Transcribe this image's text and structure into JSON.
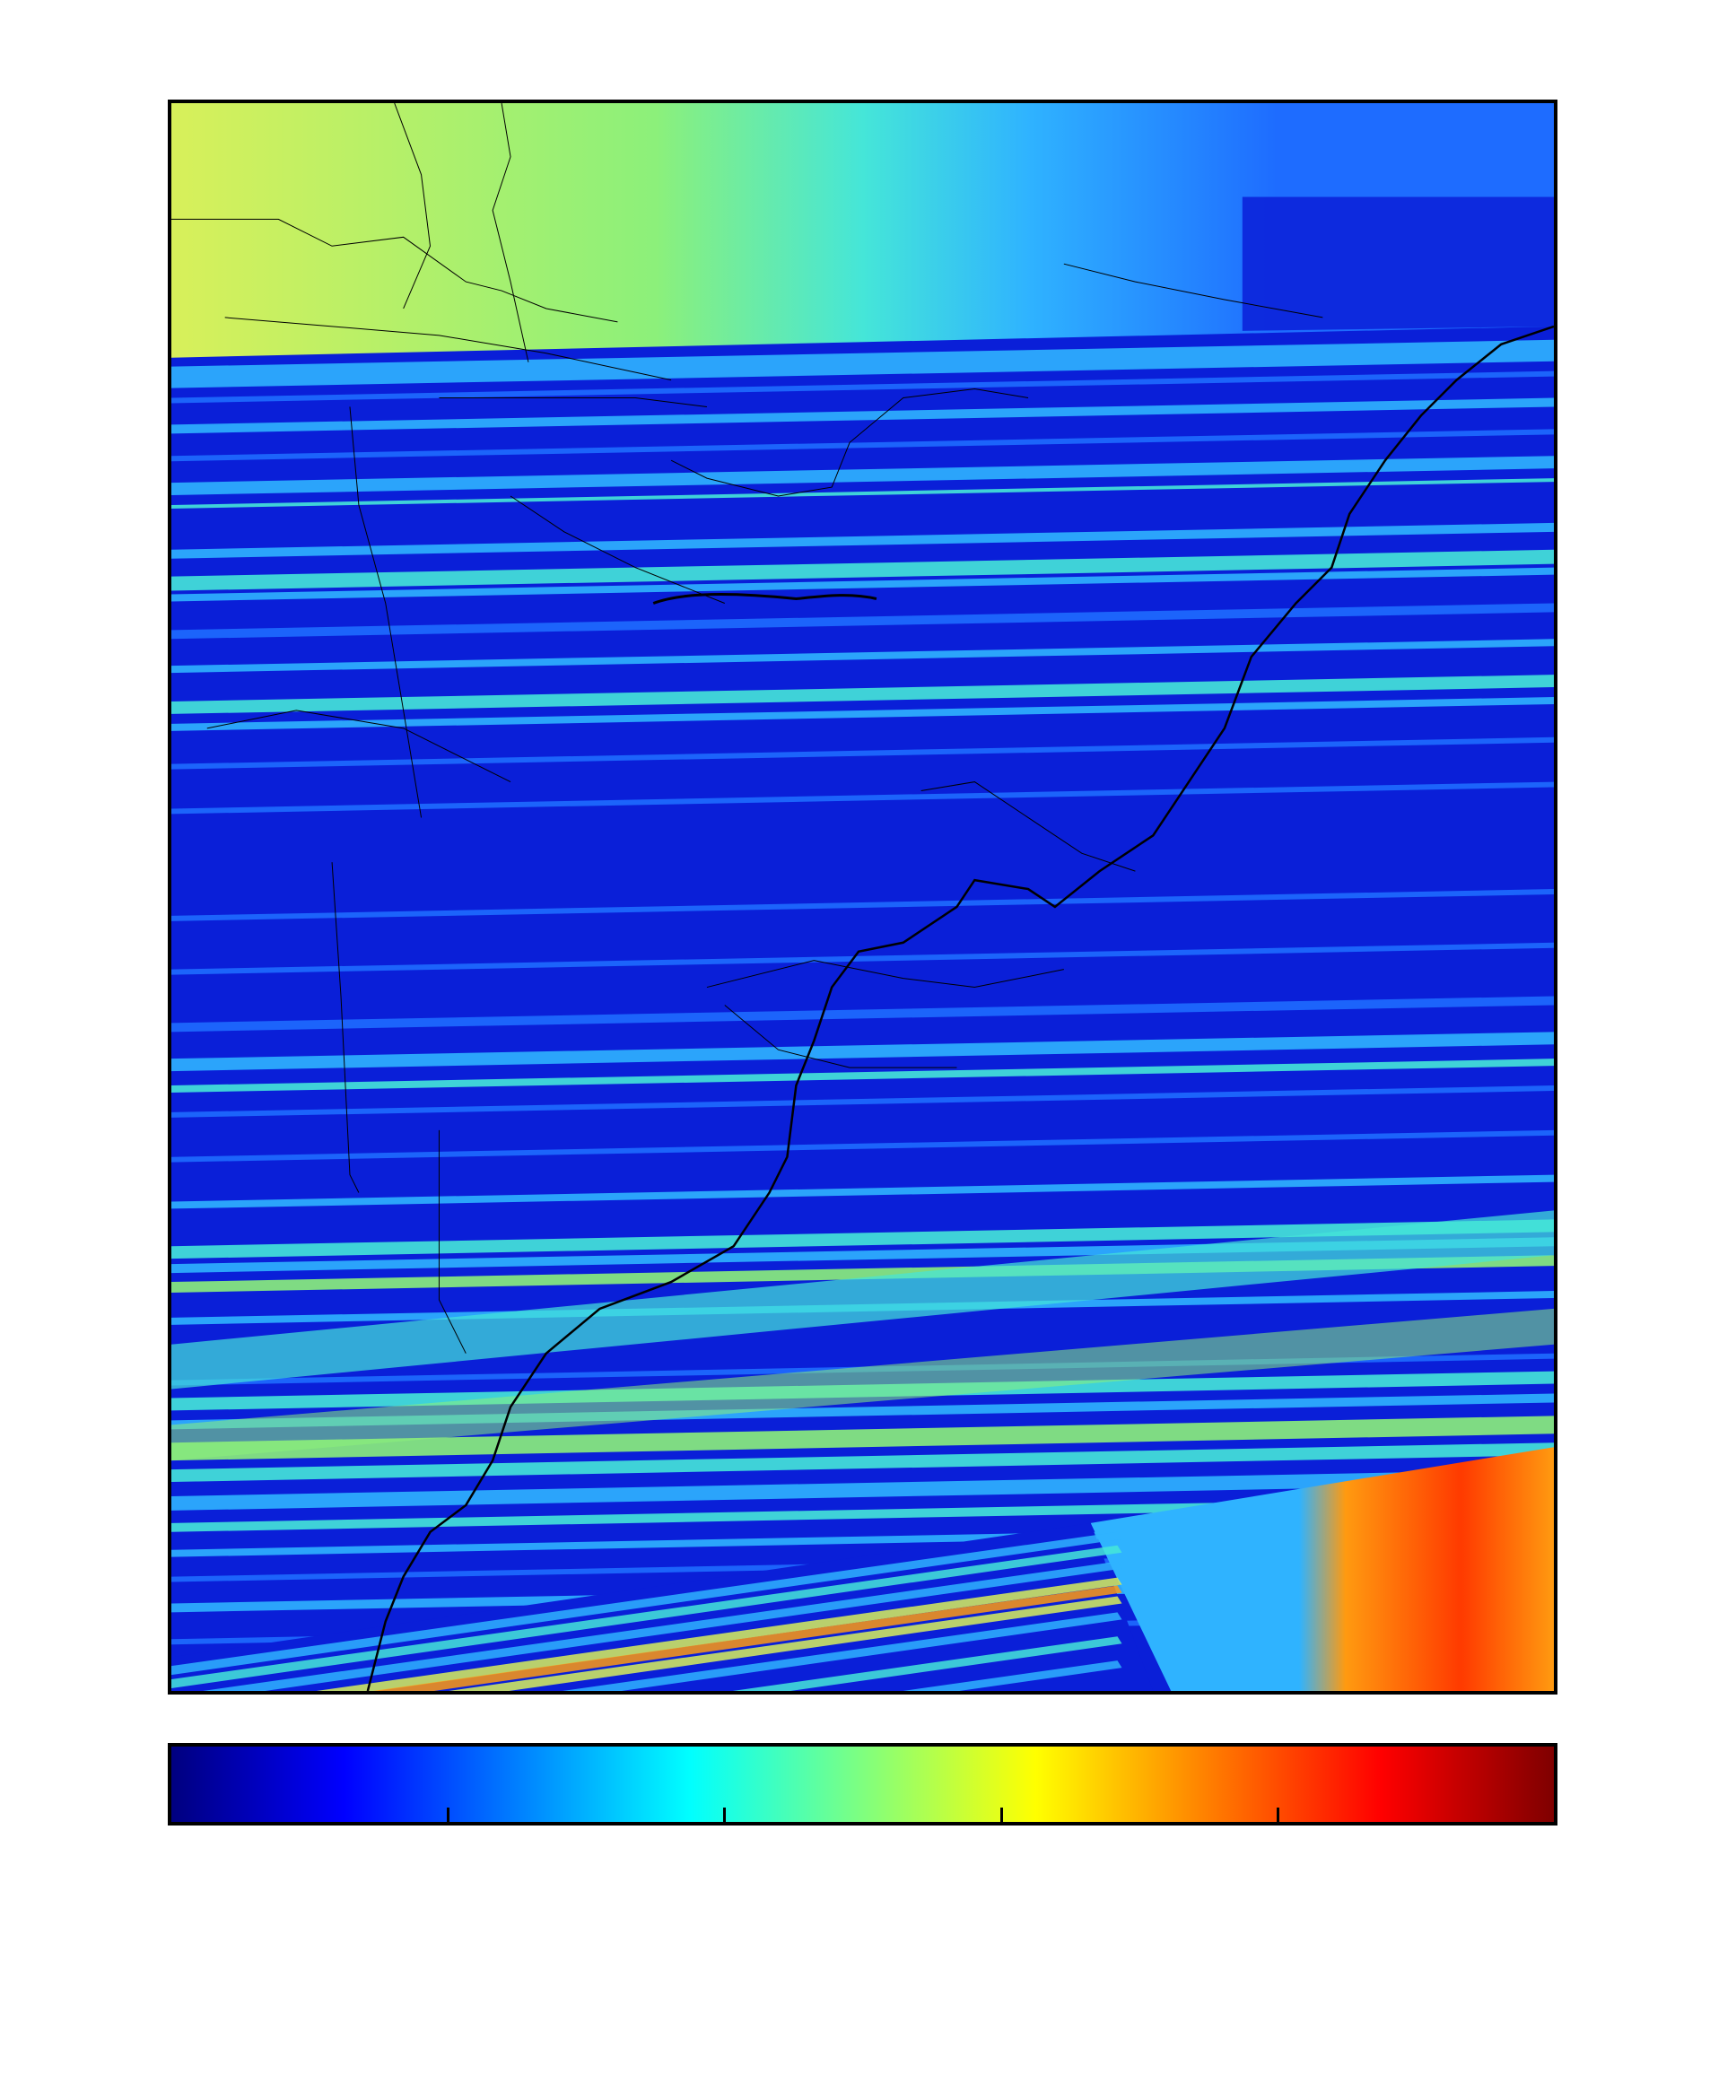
{
  "map": {
    "colormap": [
      "#00007f",
      "#0000ff",
      "#007fff",
      "#00ffff",
      "#7fff7f",
      "#ffff00",
      "#ff7f00",
      "#ff0000",
      "#7f0000"
    ],
    "background_color": "#0a1fd8",
    "border_color": "#000000",
    "swath_colors": {
      "deep": "#0a1fd8",
      "mid": "#1e6cff",
      "light": "#2fb3ff",
      "cyan": "#45e6d8",
      "green": "#8cf07a",
      "yellow": "#d8f05a",
      "orange": "#ff9a10",
      "red": "#ff3a00"
    }
  },
  "colorbar": {
    "orientation": "horizontal",
    "tick_count": 4,
    "tick_labels": []
  }
}
